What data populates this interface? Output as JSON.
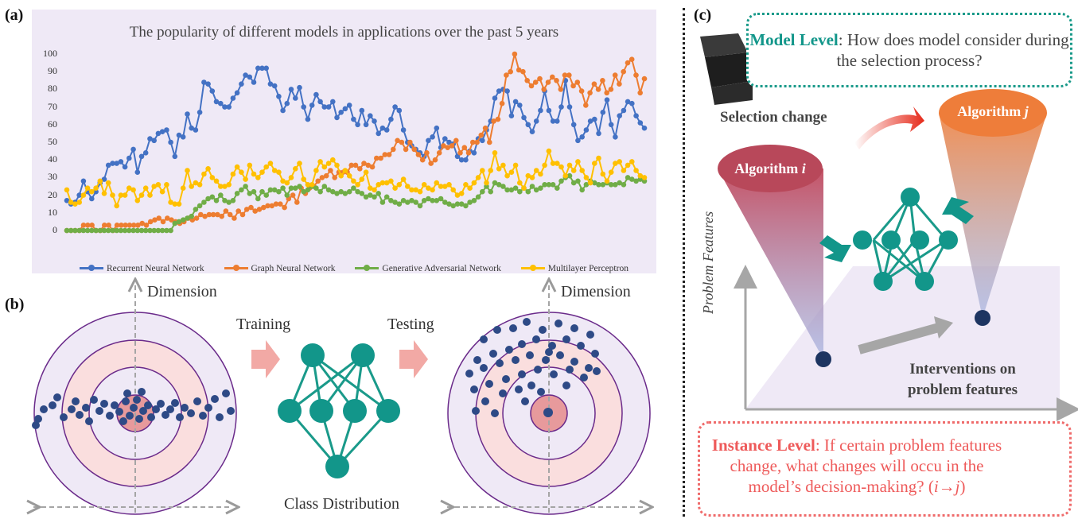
{
  "panels": {
    "a": "(a)",
    "b": "(b)",
    "c": "(c)"
  },
  "panel_a": {
    "chart_data": {
      "type": "line",
      "title": "The popularity of different models in applications over the past 5 years",
      "xlabel": "",
      "ylabel": "",
      "ylim": [
        0,
        100
      ],
      "yticks": [
        "0",
        "10",
        "20",
        "30",
        "40",
        "50",
        "60",
        "70",
        "80",
        "90",
        "100"
      ],
      "legend_position": "bottom",
      "series": [
        {
          "name": "Recurrent Neural Network",
          "color": "#4472c4",
          "values": [
            17,
            15,
            16,
            20,
            28,
            22,
            18,
            22,
            27,
            29,
            37,
            38,
            38,
            39,
            36,
            41,
            46,
            33,
            42,
            44,
            52,
            51,
            55,
            56,
            57,
            50,
            42,
            54,
            53,
            66,
            58,
            57,
            67,
            84,
            83,
            79,
            73,
            72,
            70,
            70,
            75,
            78,
            83,
            88,
            87,
            84,
            92,
            92,
            92,
            83,
            82,
            76,
            68,
            72,
            80,
            75,
            81,
            70,
            63,
            71,
            77,
            73,
            70,
            70,
            73,
            64,
            67,
            69,
            71,
            63,
            60,
            68,
            60,
            65,
            62,
            55,
            58,
            57,
            63,
            70,
            68,
            57,
            50,
            48,
            46,
            44,
            42,
            51,
            53,
            58,
            47,
            52,
            50,
            49,
            42,
            40,
            40,
            45,
            44,
            52,
            51,
            57,
            62,
            75,
            79,
            80,
            79,
            65,
            73,
            71,
            64,
            60,
            56,
            62,
            68,
            79,
            68,
            62,
            62,
            70,
            85,
            70,
            60,
            51,
            53,
            57,
            62,
            63,
            55,
            67,
            74,
            60,
            53,
            65,
            68,
            73,
            72,
            65,
            61,
            58
          ]
        },
        {
          "name": "Graph Neural Network",
          "color": "#ed7d31",
          "values": [
            0,
            0,
            0,
            0,
            3,
            3,
            3,
            0,
            0,
            3,
            3,
            0,
            3,
            3,
            3,
            3,
            3,
            3,
            4,
            3,
            5,
            6,
            7,
            5,
            7,
            6,
            5,
            4,
            5,
            7,
            6,
            7,
            9,
            8,
            9,
            9,
            9,
            8,
            11,
            9,
            7,
            11,
            9,
            12,
            13,
            11,
            12,
            13,
            14,
            14,
            15,
            15,
            13,
            18,
            20,
            16,
            24,
            21,
            24,
            25,
            28,
            30,
            31,
            34,
            30,
            33,
            33,
            33,
            37,
            37,
            35,
            38,
            37,
            36,
            41,
            41,
            43,
            43,
            46,
            51,
            50,
            46,
            50,
            46,
            43,
            40,
            44,
            38,
            40,
            44,
            48,
            47,
            48,
            51,
            44,
            47,
            44,
            50,
            50,
            54,
            58,
            50,
            62,
            63,
            72,
            88,
            90,
            100,
            91,
            90,
            85,
            82,
            84,
            86,
            80,
            84,
            87,
            85,
            80,
            88,
            88,
            82,
            84,
            79,
            71,
            78,
            83,
            80,
            85,
            78,
            80,
            88,
            83,
            90,
            95,
            97,
            88,
            78,
            86
          ]
        },
        {
          "name": "Generative Adversarial Network",
          "color": "#70ad47",
          "values": [
            0,
            0,
            0,
            0,
            0,
            0,
            0,
            0,
            0,
            0,
            0,
            0,
            0,
            0,
            0,
            0,
            0,
            0,
            0,
            0,
            0,
            0,
            0,
            0,
            0,
            0,
            4,
            5,
            6,
            7,
            8,
            12,
            14,
            16,
            18,
            19,
            17,
            20,
            17,
            16,
            17,
            21,
            23,
            25,
            21,
            22,
            18,
            22,
            20,
            23,
            23,
            22,
            24,
            20,
            24,
            24,
            25,
            22,
            23,
            25,
            24,
            22,
            25,
            23,
            22,
            21,
            22,
            21,
            22,
            24,
            22,
            21,
            19,
            20,
            19,
            21,
            16,
            19,
            17,
            16,
            15,
            17,
            16,
            17,
            16,
            14,
            17,
            18,
            17,
            17,
            18,
            16,
            15,
            14,
            15,
            15,
            14,
            16,
            17,
            19,
            22,
            25,
            22,
            27,
            26,
            25,
            23,
            23,
            24,
            22,
            24,
            22,
            25,
            23,
            24,
            26,
            26,
            26,
            24,
            28,
            30,
            31,
            27,
            28,
            23,
            26,
            28,
            27,
            26,
            26,
            27,
            26,
            26,
            27,
            26,
            30,
            29,
            28,
            29,
            28
          ]
        },
        {
          "name": "Multilayer Perceptron",
          "color": "#ffc000",
          "values": [
            23,
            16,
            15,
            16,
            20,
            24,
            22,
            24,
            28,
            21,
            27,
            20,
            14,
            20,
            20,
            24,
            23,
            17,
            20,
            24,
            20,
            25,
            26,
            22,
            26,
            16,
            15,
            15,
            24,
            34,
            25,
            27,
            26,
            32,
            35,
            30,
            28,
            25,
            25,
            26,
            32,
            36,
            33,
            29,
            37,
            32,
            30,
            33,
            36,
            38,
            34,
            33,
            28,
            27,
            30,
            35,
            38,
            29,
            26,
            26,
            34,
            39,
            36,
            38,
            40,
            37,
            31,
            34,
            31,
            28,
            26,
            29,
            33,
            24,
            23,
            26,
            27,
            27,
            28,
            24,
            26,
            29,
            25,
            23,
            23,
            22,
            26,
            24,
            23,
            27,
            25,
            25,
            26,
            23,
            20,
            21,
            26,
            24,
            27,
            30,
            34,
            27,
            34,
            44,
            35,
            37,
            31,
            33,
            37,
            27,
            24,
            31,
            30,
            34,
            32,
            37,
            45,
            38,
            38,
            36,
            31,
            37,
            34,
            39,
            34,
            30,
            27,
            38,
            41,
            32,
            28,
            33,
            38,
            39,
            34,
            37,
            39,
            34,
            31,
            30
          ]
        }
      ]
    }
  },
  "panel_b": {
    "dimension_left": "Dimension",
    "dimension_right": "Dimension",
    "training": "Training",
    "testing": "Testing",
    "class_distribution": "Class Distribution"
  },
  "panel_c": {
    "model_level_label": "Model Level",
    "model_level_text": ": How does model consider during the selection process?",
    "selection_change": "Selection change",
    "algorithm_i": "Algorithm",
    "algorithm_i_var": "i",
    "algorithm_j": "Algorithm",
    "algorithm_j_var": "j",
    "problem_features": "Problem Features",
    "interventions": "Interventions on problem features",
    "instance_level_label": "Instance Level",
    "instance_level_text": ": If certain problem features change, what changes will occu in the model’s decision-making?",
    "instance_level_suffix_pre": "(",
    "instance_level_var": "i→j",
    "instance_level_suffix_post": ")",
    "colors": {
      "teal": "#12968a",
      "red": "#ee5a5a",
      "orange": "#ed7d31",
      "maroon": "#b5525e"
    }
  }
}
